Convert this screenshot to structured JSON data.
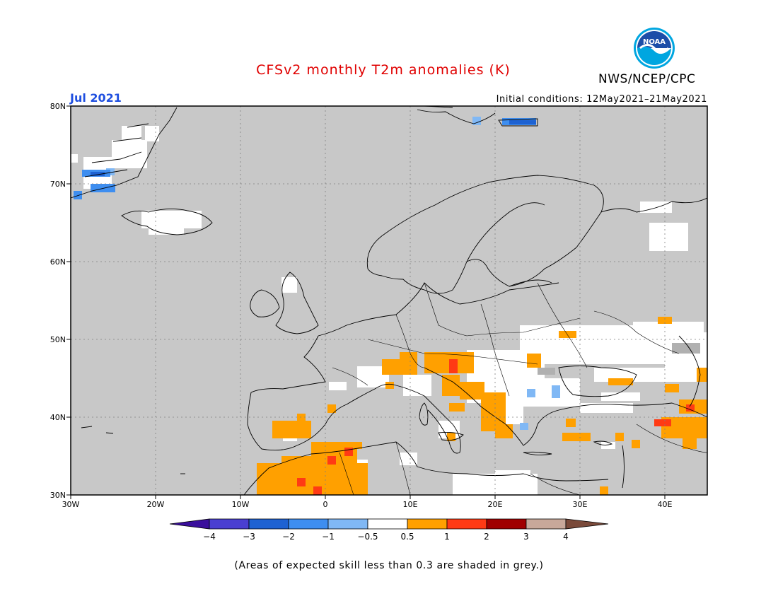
{
  "title": "CFSv2 monthly T2m anomalies (K)",
  "organization": "NWS/NCEP/CPC",
  "logo_text": "NOAA",
  "target_month": "Jul 2021",
  "initial_conditions": "Initial conditions: 12May2021–21May2021",
  "footnote": "(Areas of expected skill less than 0.3 are shaded in grey.)",
  "map": {
    "lon_range": [
      -30,
      45
    ],
    "lat_range": [
      30,
      80
    ],
    "lon_ticks": [
      "30W",
      "20W",
      "10W",
      "0",
      "10E",
      "20E",
      "30E",
      "40E"
    ],
    "lat_ticks": [
      "30N",
      "40N",
      "50N",
      "60N",
      "70N",
      "80N"
    ],
    "background_color": "#c8c8c8",
    "grid": true
  },
  "colorbar": {
    "tick_labels": [
      "−4",
      "−3",
      "−2",
      "−1",
      "−0.5",
      "0.5",
      "1",
      "2",
      "3",
      "4"
    ],
    "colors": [
      "#3a0f9c",
      "#4a3fd1",
      "#1e62d2",
      "#3e8ef0",
      "#80b8f5",
      "#ffffff",
      "#ffa000",
      "#ff3a14",
      "#a00000",
      "#c8a89a",
      "#7a4a3a"
    ]
  }
}
